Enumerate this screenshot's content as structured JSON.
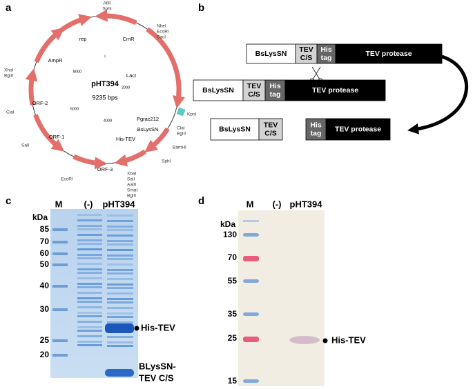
{
  "panel_labels": [
    "a",
    "b",
    "c",
    "d"
  ],
  "plasmid": {
    "name": "pHT394",
    "size": "9235 bps",
    "genes": [
      "rep",
      "CmR",
      "AmpR",
      "LacI",
      "ORF-2",
      "Pgrac212",
      "BsLysSN",
      "His-TEV",
      "ORF-1",
      "ORF-3"
    ],
    "scale_labels": [
      "I",
      "8000",
      "2000",
      "6000",
      "4000"
    ],
    "sites": [
      "AflII",
      "SphI",
      "NheI",
      "EcoRI",
      "SacI",
      "XhoI",
      "BglII",
      "KpnI",
      "ClaI",
      "BglII",
      "BamHI",
      "SphI",
      "ClaI",
      "SalI",
      "EcoRI",
      "XbaI",
      "SalI",
      "AatII",
      "SmaI",
      "BglII"
    ]
  },
  "constructs": [
    [
      {
        "lines": [
          "BsLysSN"
        ]
      },
      {
        "lines": [
          "TEV",
          "C/S"
        ]
      },
      {
        "lines": [
          "His",
          "tag"
        ]
      },
      {
        "lines": [
          "TEV protease"
        ]
      }
    ],
    [
      {
        "lines": [
          "BsLysSN"
        ]
      },
      {
        "lines": [
          "TEV",
          "C/S"
        ]
      },
      {
        "lines": [
          "His",
          "tag"
        ]
      },
      {
        "lines": [
          "TEV protease"
        ]
      }
    ],
    [
      {
        "lines": [
          "BsLysSN"
        ]
      },
      {
        "lines": [
          "TEV",
          "C/S"
        ]
      },
      {
        "lines": [
          "His",
          "tag"
        ]
      },
      {
        "lines": [
          "TEV protease"
        ]
      }
    ]
  ],
  "gel_c": {
    "lanes": [
      "M",
      "(-)",
      "pHT394"
    ],
    "unit": "kDa",
    "markers": [
      85,
      70,
      60,
      50,
      40,
      30,
      25,
      20
    ],
    "annotations": [
      "His-TEV",
      "BLysSN-",
      "TEV C/S"
    ]
  },
  "gel_d": {
    "lanes": [
      "M",
      "(-)",
      "pHT394"
    ],
    "unit": "kDa",
    "markers": [
      130,
      70,
      55,
      35,
      25,
      15
    ],
    "annotations": [
      "His-TEV"
    ]
  }
}
